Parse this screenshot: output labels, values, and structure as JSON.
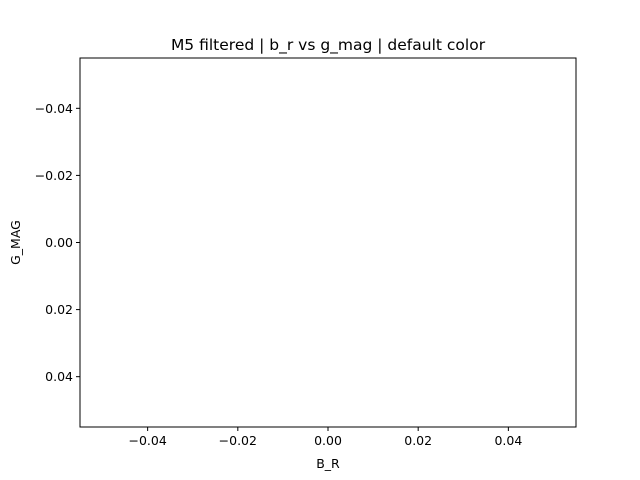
{
  "chart_data": {
    "type": "scatter",
    "title": "M5 filtered | b_r vs g_mag | default color",
    "xlabel": "B_R",
    "ylabel": "G_MAG",
    "xlim": [
      -0.055,
      0.055
    ],
    "ylim": [
      0.055,
      -0.055
    ],
    "y_inverted": true,
    "grid": false,
    "x_ticks": [
      -0.04,
      -0.02,
      0.0,
      0.02,
      0.04
    ],
    "x_tick_labels": [
      "−0.04",
      "−0.02",
      "0.00",
      "0.02",
      "0.04"
    ],
    "y_ticks": [
      -0.04,
      -0.02,
      0.0,
      0.02,
      0.04
    ],
    "y_tick_labels": [
      "−0.04",
      "−0.02",
      "0.00",
      "0.02",
      "0.04"
    ],
    "series": [
      {
        "x": [],
        "y": [],
        "color": "#1f77b4"
      }
    ]
  }
}
